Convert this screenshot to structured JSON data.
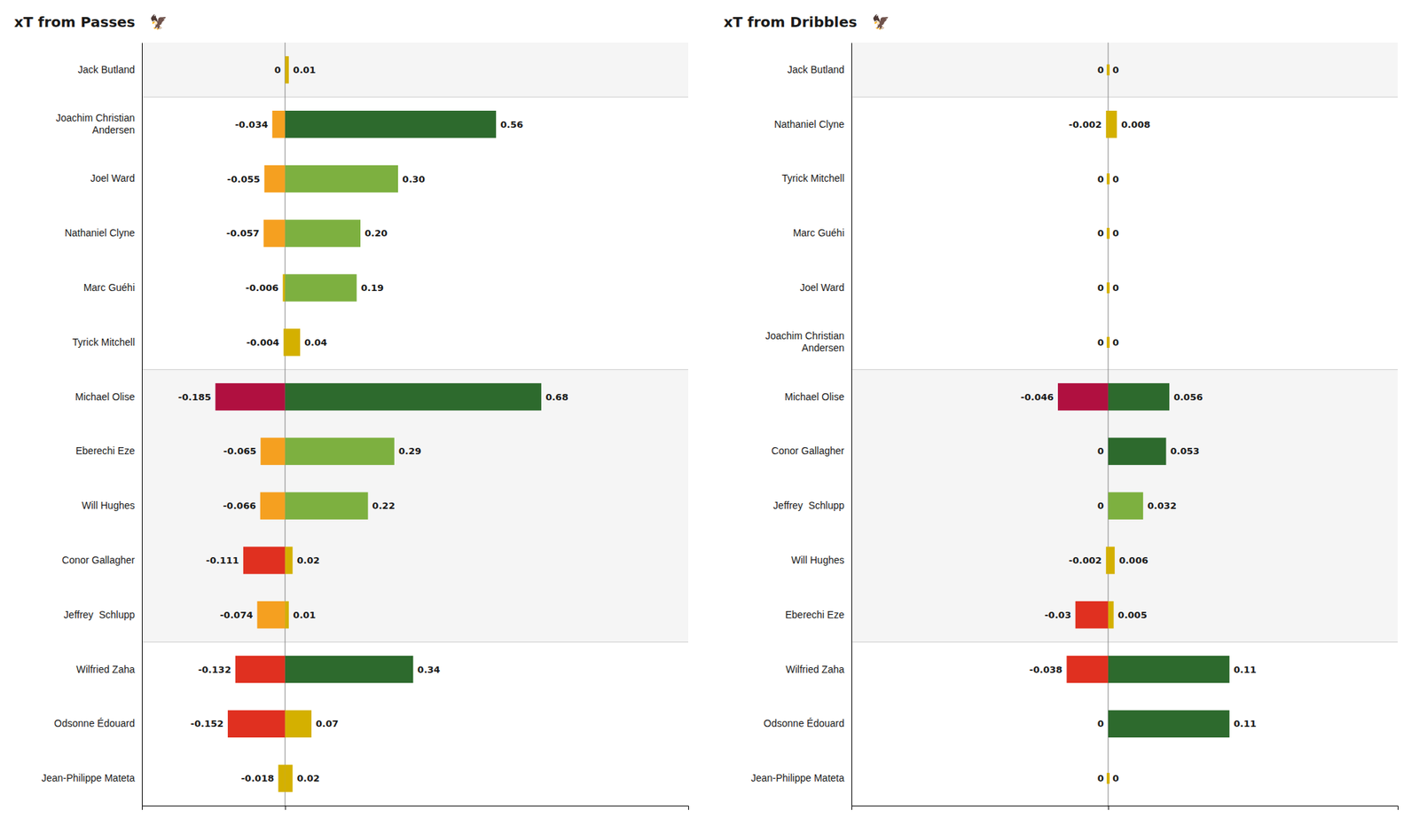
{
  "chart_data": [
    {
      "type": "bar",
      "orientation": "horizontal",
      "title": "xT from Passes   🦅",
      "categories": [
        "Jack Butland",
        "Joachim Christian\nAndersen",
        "Joel Ward",
        "Nathaniel Clyne",
        "Marc Guéhi",
        "Tyrick Mitchell",
        "Michael Olise",
        "Eberechi Eze",
        "Will Hughes",
        "Conor Gallagher",
        "Jeffrey  Schlupp",
        "Wilfried Zaha",
        "Odsonne Édouard",
        "Jean-Philippe Mateta"
      ],
      "groups": [
        0,
        1,
        1,
        1,
        1,
        1,
        2,
        2,
        2,
        2,
        2,
        3,
        3,
        3
      ],
      "series": [
        {
          "values": [
            0.0,
            -0.034,
            -0.055,
            -0.057,
            -0.006,
            -0.004,
            -0.185,
            -0.065,
            -0.066,
            -0.111,
            -0.074,
            -0.132,
            -0.152,
            -0.018
          ],
          "value_labels": [
            "0",
            "-0.034",
            "-0.055",
            "-0.057",
            "-0.006",
            "-0.004",
            "-0.185",
            "-0.065",
            "-0.066",
            "-0.111",
            "-0.074",
            "-0.132",
            "-0.152",
            "-0.018"
          ],
          "colors": [
            "#d4b000",
            "#f5a020",
            "#f5a020",
            "#f5a020",
            "#d4b000",
            "#d4b000",
            "#b01040",
            "#f5a020",
            "#f5a020",
            "#e03020",
            "#f5a020",
            "#e03020",
            "#e03020",
            "#d4b000"
          ]
        },
        {
          "values": [
            0.01,
            0.56,
            0.3,
            0.2,
            0.19,
            0.04,
            0.68,
            0.29,
            0.22,
            0.02,
            0.01,
            0.34,
            0.07,
            0.02
          ],
          "value_labels": [
            "0.01",
            "0.56",
            "0.30",
            "0.20",
            "0.19",
            "0.04",
            "0.68",
            "0.29",
            "0.22",
            "0.02",
            "0.01",
            "0.34",
            "0.07",
            "0.02"
          ],
          "colors": [
            "#d4b000",
            "#2d6a2d",
            "#7db040",
            "#7db040",
            "#7db040",
            "#d4b000",
            "#2d6a2d",
            "#7db040",
            "#7db040",
            "#d4b000",
            "#d4b000",
            "#2d6a2d",
            "#d4b000",
            "#d4b000"
          ]
        }
      ],
      "xlim": [
        -0.38,
        1.07
      ],
      "xticks": [
        0
      ],
      "grid": true,
      "tick_labels": "y",
      "data_labels": true
    },
    {
      "type": "bar",
      "orientation": "horizontal",
      "title": "xT from Dribbles   🦅",
      "categories": [
        "Jack Butland",
        "Nathaniel Clyne",
        "Tyrick Mitchell",
        "Marc Guéhi",
        "Joel Ward",
        "Joachim Christian\nAndersen",
        "Michael Olise",
        "Conor Gallagher",
        "Jeffrey  Schlupp",
        "Will Hughes",
        "Eberechi Eze",
        "Wilfried Zaha",
        "Odsonne Édouard",
        "Jean-Philippe Mateta"
      ],
      "groups": [
        0,
        1,
        1,
        1,
        1,
        1,
        2,
        2,
        2,
        2,
        2,
        3,
        3,
        3
      ],
      "series": [
        {
          "values": [
            0.0,
            -0.002,
            0.0,
            0.0,
            0.0,
            0.0,
            -0.046,
            0.0,
            0.0,
            -0.002,
            -0.03,
            -0.038,
            0.0,
            0.0
          ],
          "value_labels": [
            "0",
            "-0.002",
            "0",
            "0",
            "0",
            "0",
            "-0.046",
            "0",
            "0",
            "-0.002",
            "-0.03",
            "-0.038",
            "0",
            "0"
          ],
          "colors": [
            "#d4b000",
            "#d4b000",
            "#d4b000",
            "#d4b000",
            "#d4b000",
            "#d4b000",
            "#b01040",
            "#d4b000",
            "#d4b000",
            "#d4b000",
            "#e03020",
            "#e03020",
            "#d4b000",
            "#d4b000"
          ]
        },
        {
          "values": [
            0.0,
            0.008,
            0.0,
            0.0,
            0.0,
            0.0,
            0.056,
            0.053,
            0.032,
            0.006,
            0.005,
            0.111,
            0.111,
            0.0
          ],
          "value_labels": [
            "0",
            "0.008",
            "0",
            "0",
            "0",
            "0",
            "0.056",
            "0.053",
            "0.032",
            "0.006",
            "0.005",
            "0.11",
            "0.11",
            "0"
          ],
          "colors": [
            "#d4b000",
            "#d4b000",
            "#d4b000",
            "#d4b000",
            "#d4b000",
            "#d4b000",
            "#2d6a2d",
            "#2d6a2d",
            "#7db040",
            "#d4b000",
            "#d4b000",
            "#2d6a2d",
            "#2d6a2d",
            "#d4b000"
          ]
        }
      ],
      "xlim": [
        -0.235,
        0.265
      ],
      "xticks": [
        0
      ],
      "grid": true,
      "tick_labels": "y",
      "data_labels": true
    }
  ]
}
